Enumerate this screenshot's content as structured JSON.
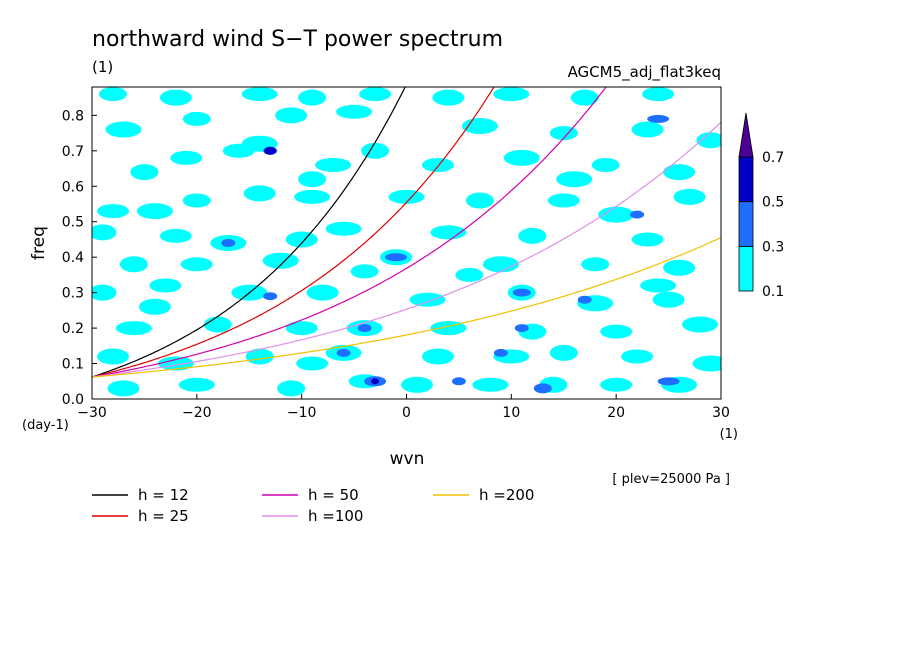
{
  "chart_data": {
    "type": "heatmap",
    "title": "northward wind S−T power spectrum",
    "title_unit": "(1)",
    "experiment": "AGCM5_adj_flat3keq",
    "xlabel": "wvn",
    "ylabel": "freq",
    "x_unit": "(1)",
    "y_unit": "(day-1)",
    "level_note": "[ plev=25000 Pa ]",
    "xlim": [
      -30,
      30
    ],
    "ylim": [
      0,
      0.88
    ],
    "x_ticks": [
      -30,
      -20,
      -10,
      0,
      10,
      20,
      30
    ],
    "y_ticks": [
      0.0,
      0.1,
      0.2,
      0.3,
      0.4,
      0.5,
      0.6,
      0.7,
      0.8
    ],
    "colorbar": {
      "levels": [
        0.1,
        0.3,
        0.5,
        0.7
      ],
      "colors": [
        "#00FFFF",
        "#1E6FFF",
        "#0000C8",
        "#4B0095"
      ],
      "extend": "max"
    },
    "dispersion_curves": [
      {
        "label": "h = 12",
        "h": 12,
        "color": "#000000"
      },
      {
        "label": "h = 25",
        "h": 25,
        "color": "#E00000"
      },
      {
        "label": "h = 50",
        "h": 50,
        "color": "#D000B0"
      },
      {
        "label": "h =100",
        "h": 100,
        "color": "#E090E8"
      },
      {
        "label": "h =200",
        "h": 200,
        "color": "#F0C000"
      }
    ],
    "blobs": [
      {
        "x": -28,
        "y": 0.86,
        "l": 0
      },
      {
        "x": -22,
        "y": 0.85,
        "l": 0
      },
      {
        "x": -14,
        "y": 0.86,
        "l": 0
      },
      {
        "x": -9,
        "y": 0.85,
        "l": 0
      },
      {
        "x": -3,
        "y": 0.86,
        "l": 0
      },
      {
        "x": -27,
        "y": 0.76,
        "l": 0
      },
      {
        "x": -20,
        "y": 0.79,
        "l": 0
      },
      {
        "x": -11,
        "y": 0.8,
        "l": 0
      },
      {
        "x": -5,
        "y": 0.81,
        "l": 0
      },
      {
        "x": -25,
        "y": 0.64,
        "l": 0
      },
      {
        "x": -16,
        "y": 0.7,
        "l": 0
      },
      {
        "x": -14,
        "y": 0.72,
        "l": 0
      },
      {
        "x": -13,
        "y": 0.7,
        "l": 1
      },
      {
        "x": -13,
        "y": 0.7,
        "l": 2
      },
      {
        "x": -7,
        "y": 0.66,
        "l": 0
      },
      {
        "x": -3,
        "y": 0.7,
        "l": 0
      },
      {
        "x": -28,
        "y": 0.53,
        "l": 0
      },
      {
        "x": -24,
        "y": 0.53,
        "l": 0
      },
      {
        "x": -20,
        "y": 0.56,
        "l": 0
      },
      {
        "x": -14,
        "y": 0.58,
        "l": 0
      },
      {
        "x": -9,
        "y": 0.57,
        "l": 0
      },
      {
        "x": -29,
        "y": 0.47,
        "l": 0
      },
      {
        "x": -22,
        "y": 0.46,
        "l": 0
      },
      {
        "x": -17,
        "y": 0.44,
        "l": 0
      },
      {
        "x": -17,
        "y": 0.44,
        "l": 1
      },
      {
        "x": -10,
        "y": 0.45,
        "l": 0
      },
      {
        "x": -6,
        "y": 0.48,
        "l": 0
      },
      {
        "x": -26,
        "y": 0.38,
        "l": 0
      },
      {
        "x": -20,
        "y": 0.38,
        "l": 0
      },
      {
        "x": -12,
        "y": 0.39,
        "l": 0
      },
      {
        "x": -4,
        "y": 0.36,
        "l": 0
      },
      {
        "x": -1,
        "y": 0.4,
        "l": 0
      },
      {
        "x": -1,
        "y": 0.4,
        "l": 1
      },
      {
        "x": -29,
        "y": 0.3,
        "l": 0
      },
      {
        "x": -23,
        "y": 0.32,
        "l": 0
      },
      {
        "x": -15,
        "y": 0.3,
        "l": 0
      },
      {
        "x": -13,
        "y": 0.29,
        "l": 1
      },
      {
        "x": -8,
        "y": 0.3,
        "l": 0
      },
      {
        "x": -26,
        "y": 0.2,
        "l": 0
      },
      {
        "x": -18,
        "y": 0.21,
        "l": 0
      },
      {
        "x": -10,
        "y": 0.2,
        "l": 0
      },
      {
        "x": -4,
        "y": 0.2,
        "l": 0
      },
      {
        "x": -4,
        "y": 0.2,
        "l": 1
      },
      {
        "x": -28,
        "y": 0.12,
        "l": 0
      },
      {
        "x": -22,
        "y": 0.1,
        "l": 0
      },
      {
        "x": -14,
        "y": 0.12,
        "l": 0
      },
      {
        "x": -9,
        "y": 0.1,
        "l": 0
      },
      {
        "x": -6,
        "y": 0.13,
        "l": 0
      },
      {
        "x": -6,
        "y": 0.13,
        "l": 1
      },
      {
        "x": -27,
        "y": 0.03,
        "l": 0
      },
      {
        "x": -20,
        "y": 0.04,
        "l": 0
      },
      {
        "x": -11,
        "y": 0.03,
        "l": 0
      },
      {
        "x": -4,
        "y": 0.05,
        "l": 0
      },
      {
        "x": -3,
        "y": 0.05,
        "l": 1
      },
      {
        "x": -3,
        "y": 0.05,
        "l": 2
      },
      {
        "x": 4,
        "y": 0.85,
        "l": 0
      },
      {
        "x": 10,
        "y": 0.86,
        "l": 0
      },
      {
        "x": 17,
        "y": 0.85,
        "l": 0
      },
      {
        "x": 24,
        "y": 0.86,
        "l": 0
      },
      {
        "x": 7,
        "y": 0.77,
        "l": 0
      },
      {
        "x": 15,
        "y": 0.75,
        "l": 0
      },
      {
        "x": 23,
        "y": 0.76,
        "l": 0
      },
      {
        "x": 24,
        "y": 0.79,
        "l": 1
      },
      {
        "x": 29,
        "y": 0.73,
        "l": 0
      },
      {
        "x": 3,
        "y": 0.66,
        "l": 0
      },
      {
        "x": 11,
        "y": 0.68,
        "l": 0
      },
      {
        "x": 19,
        "y": 0.66,
        "l": 0
      },
      {
        "x": 26,
        "y": 0.64,
        "l": 0
      },
      {
        "x": 0,
        "y": 0.57,
        "l": 0
      },
      {
        "x": 7,
        "y": 0.56,
        "l": 0
      },
      {
        "x": 15,
        "y": 0.56,
        "l": 0
      },
      {
        "x": 20,
        "y": 0.52,
        "l": 0
      },
      {
        "x": 22,
        "y": 0.52,
        "l": 1
      },
      {
        "x": 27,
        "y": 0.57,
        "l": 0
      },
      {
        "x": 4,
        "y": 0.47,
        "l": 0
      },
      {
        "x": 12,
        "y": 0.46,
        "l": 0
      },
      {
        "x": 23,
        "y": 0.45,
        "l": 0
      },
      {
        "x": 9,
        "y": 0.38,
        "l": 0
      },
      {
        "x": 18,
        "y": 0.38,
        "l": 0
      },
      {
        "x": 26,
        "y": 0.37,
        "l": 0
      },
      {
        "x": 2,
        "y": 0.28,
        "l": 0
      },
      {
        "x": 11,
        "y": 0.3,
        "l": 0
      },
      {
        "x": 11,
        "y": 0.3,
        "l": 1
      },
      {
        "x": 18,
        "y": 0.27,
        "l": 0
      },
      {
        "x": 17,
        "y": 0.28,
        "l": 1
      },
      {
        "x": 25,
        "y": 0.28,
        "l": 0
      },
      {
        "x": 4,
        "y": 0.2,
        "l": 0
      },
      {
        "x": 12,
        "y": 0.19,
        "l": 0
      },
      {
        "x": 20,
        "y": 0.19,
        "l": 0
      },
      {
        "x": 28,
        "y": 0.21,
        "l": 0
      },
      {
        "x": 11,
        "y": 0.2,
        "l": 1
      },
      {
        "x": 3,
        "y": 0.12,
        "l": 0
      },
      {
        "x": 10,
        "y": 0.12,
        "l": 0
      },
      {
        "x": 15,
        "y": 0.13,
        "l": 0
      },
      {
        "x": 22,
        "y": 0.12,
        "l": 0
      },
      {
        "x": 29,
        "y": 0.1,
        "l": 0
      },
      {
        "x": 9,
        "y": 0.13,
        "l": 1
      },
      {
        "x": 1,
        "y": 0.04,
        "l": 0
      },
      {
        "x": 8,
        "y": 0.04,
        "l": 0
      },
      {
        "x": 14,
        "y": 0.04,
        "l": 0
      },
      {
        "x": 20,
        "y": 0.04,
        "l": 0
      },
      {
        "x": 26,
        "y": 0.04,
        "l": 0
      },
      {
        "x": 5,
        "y": 0.05,
        "l": 1
      },
      {
        "x": 13,
        "y": 0.03,
        "l": 1
      },
      {
        "x": 25,
        "y": 0.05,
        "l": 1
      },
      {
        "x": -9,
        "y": 0.62,
        "l": 0
      },
      {
        "x": -21,
        "y": 0.68,
        "l": 0
      },
      {
        "x": 16,
        "y": 0.62,
        "l": 0
      },
      {
        "x": 6,
        "y": 0.35,
        "l": 0
      },
      {
        "x": -24,
        "y": 0.26,
        "l": 0
      },
      {
        "x": 24,
        "y": 0.32,
        "l": 0
      }
    ]
  }
}
